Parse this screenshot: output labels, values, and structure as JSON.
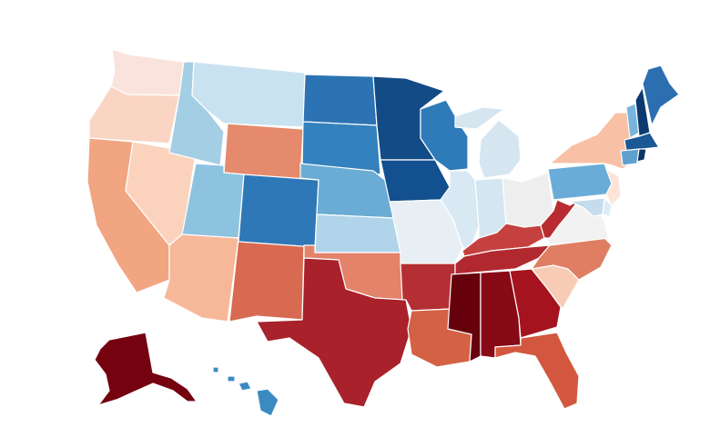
{
  "map": {
    "type": "choropleth",
    "region": "United States",
    "color_scale": [
      "#67000d",
      "#a50f15",
      "#d6604d",
      "#f4a582",
      "#fddbc7",
      "#f7f7f7",
      "#d1e5f0",
      "#92c5de",
      "#4393c3",
      "#2166ac",
      "#053061"
    ],
    "states": [
      {
        "id": "WA",
        "color": "#fae3dc"
      },
      {
        "id": "OR",
        "color": "#fbd5c4"
      },
      {
        "id": "CA",
        "color": "#f1a581"
      },
      {
        "id": "NV",
        "color": "#fbd3bd"
      },
      {
        "id": "ID",
        "color": "#a4cee4"
      },
      {
        "id": "MT",
        "color": "#c9e2f0"
      },
      {
        "id": "WY",
        "color": "#e58a6c"
      },
      {
        "id": "UT",
        "color": "#8ec3e0"
      },
      {
        "id": "AZ",
        "color": "#f7b799"
      },
      {
        "id": "NM",
        "color": "#d86a51"
      },
      {
        "id": "CO",
        "color": "#2f78b8"
      },
      {
        "id": "ND",
        "color": "#2c73b4"
      },
      {
        "id": "SD",
        "color": "#3381bd"
      },
      {
        "id": "NE",
        "color": "#6aacd3"
      },
      {
        "id": "KS",
        "color": "#b0d5ea"
      },
      {
        "id": "OK",
        "color": "#e2836a"
      },
      {
        "id": "TX",
        "color": "#a8212b"
      },
      {
        "id": "MN",
        "color": "#124b86"
      },
      {
        "id": "IA",
        "color": "#13508f"
      },
      {
        "id": "MO",
        "color": "#e7eef4"
      },
      {
        "id": "AR",
        "color": "#b42f33"
      },
      {
        "id": "LA",
        "color": "#d36244"
      },
      {
        "id": "WI",
        "color": "#2f7bb9"
      },
      {
        "id": "IL",
        "color": "#d9e9f3"
      },
      {
        "id": "MI",
        "color": "#d5e6f1"
      },
      {
        "id": "IN",
        "color": "#d3e6f1"
      },
      {
        "id": "OH",
        "color": "#eeeeee"
      },
      {
        "id": "KY",
        "color": "#c5413f"
      },
      {
        "id": "TN",
        "color": "#b1292f"
      },
      {
        "id": "MS",
        "color": "#66000c"
      },
      {
        "id": "AL",
        "color": "#880a16"
      },
      {
        "id": "GA",
        "color": "#a5131e"
      },
      {
        "id": "FL",
        "color": "#d3573f"
      },
      {
        "id": "SC",
        "color": "#f8ccb4"
      },
      {
        "id": "NC",
        "color": "#e07e64"
      },
      {
        "id": "VA",
        "color": "#f2f2f2"
      },
      {
        "id": "WV",
        "color": "#b82b30"
      },
      {
        "id": "PA",
        "color": "#6aacd8"
      },
      {
        "id": "NY",
        "color": "#f8c0a4"
      },
      {
        "id": "NJ",
        "color": "#fce4d8"
      },
      {
        "id": "DE",
        "color": "#dcecf5"
      },
      {
        "id": "MD",
        "color": "#c4dcee"
      },
      {
        "id": "VT",
        "color": "#79b5da"
      },
      {
        "id": "NH",
        "color": "#0d3a6e"
      },
      {
        "id": "ME",
        "color": "#2c6fb0"
      },
      {
        "id": "MA",
        "color": "#1a5896"
      },
      {
        "id": "CT",
        "color": "#5ea1cf"
      },
      {
        "id": "RI",
        "color": "#0b3466"
      },
      {
        "id": "AK",
        "color": "#74020f"
      },
      {
        "id": "HI",
        "color": "#3b8bc2"
      }
    ]
  }
}
